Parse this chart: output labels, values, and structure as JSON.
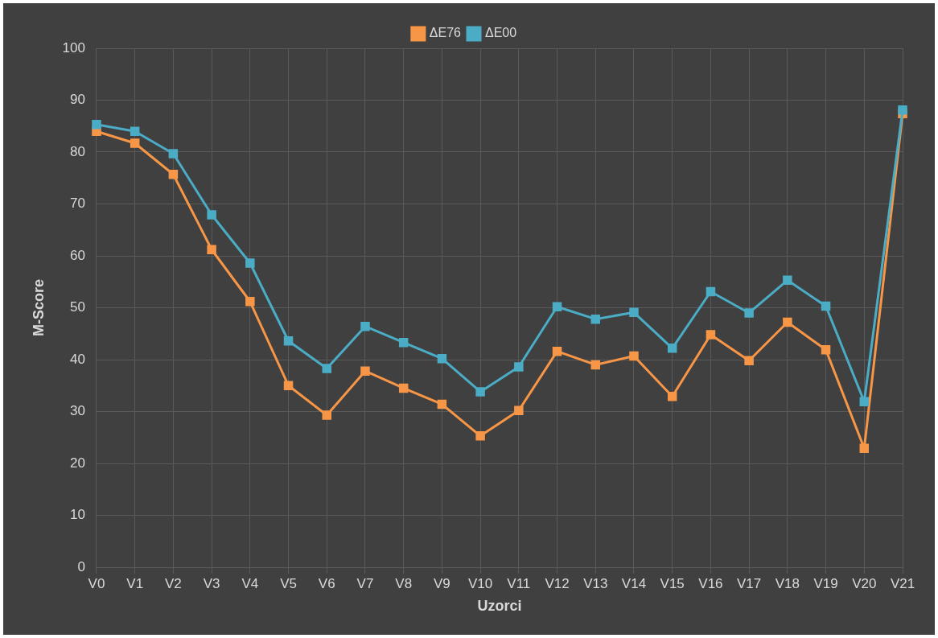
{
  "chart_data": {
    "type": "line",
    "xlabel": "Uzorci",
    "ylabel": "M-Score",
    "categories": [
      "V0",
      "V1",
      "V2",
      "V3",
      "V4",
      "V5",
      "V6",
      "V7",
      "V8",
      "V9",
      "V10",
      "V11",
      "V12",
      "V13",
      "V14",
      "V15",
      "V16",
      "V17",
      "V18",
      "V19",
      "V20",
      "V21"
    ],
    "series": [
      {
        "name": "ΔE76",
        "color": "#f79646",
        "values": [
          84.0,
          81.7,
          75.7,
          61.2,
          51.2,
          35.0,
          29.3,
          37.8,
          34.5,
          31.4,
          25.3,
          30.2,
          41.6,
          39.0,
          40.7,
          32.9,
          44.8,
          39.8,
          47.2,
          41.9,
          22.9,
          87.4
        ]
      },
      {
        "name": "ΔE00",
        "color": "#4bacc6",
        "values": [
          85.3,
          84.0,
          79.7,
          67.9,
          58.6,
          43.6,
          38.3,
          46.4,
          43.3,
          40.2,
          33.8,
          38.6,
          50.2,
          47.8,
          49.1,
          42.2,
          53.1,
          49.0,
          55.3,
          50.3,
          31.9,
          88.1
        ]
      }
    ],
    "ylim": [
      0,
      100
    ],
    "yticks": [
      0,
      10,
      20,
      30,
      40,
      50,
      60,
      70,
      80,
      90,
      100
    ],
    "grid": true,
    "legend": "top",
    "marker": "square",
    "line_style": "solid"
  }
}
